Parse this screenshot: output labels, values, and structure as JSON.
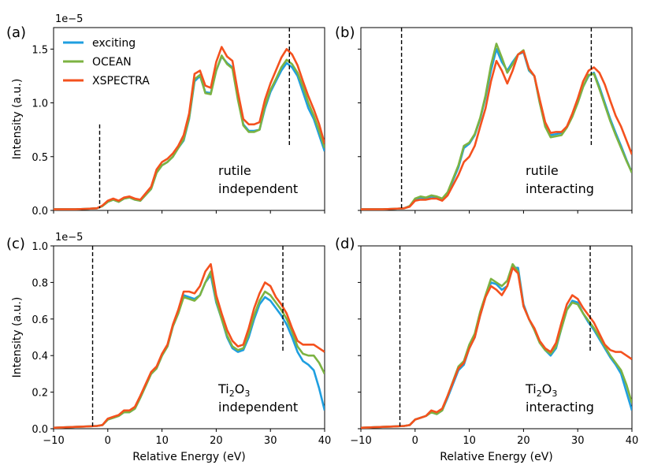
{
  "figure": {
    "xlabel": "Relative Energy (eV)",
    "ylabel": "Intensity (a.u.)",
    "scale_label": "1e−5",
    "legend": [
      {
        "name": "exciting",
        "color": "#1f9fe0"
      },
      {
        "name": "OCEAN",
        "color": "#7cb342"
      },
      {
        "name": "XSPECTRA",
        "color": "#f4511e"
      }
    ]
  },
  "chart_data": [
    {
      "panel": "(a)",
      "type": "line",
      "annotation": [
        "rutile",
        "independent"
      ],
      "xlim": [
        -10,
        40
      ],
      "ylim": [
        0,
        1.7
      ],
      "xticks": [
        -10,
        0,
        10,
        20,
        30,
        40
      ],
      "yticks": [
        0.0,
        0.5,
        1.0,
        1.5
      ],
      "ytick_labels": [
        "0.0",
        "0.5",
        "1.0",
        "1.5"
      ],
      "vlines": [
        {
          "x": -1.5,
          "y": [
            0.02,
            0.8
          ]
        },
        {
          "x": 33.5,
          "y": [
            0.6,
            1.71
          ]
        }
      ],
      "x": [
        -10,
        -6,
        -4,
        -2,
        -1,
        0,
        1,
        2,
        3,
        4,
        5,
        6,
        8,
        9,
        10,
        11,
        12,
        13,
        14,
        15,
        16,
        17,
        18,
        19,
        20,
        21,
        22,
        23,
        24,
        25,
        26,
        27,
        28,
        29,
        30,
        31,
        32,
        33,
        34,
        35,
        36,
        37,
        38,
        39,
        40
      ],
      "series": [
        {
          "name": "exciting",
          "values": [
            0.01,
            0.01,
            0.015,
            0.02,
            0.04,
            0.08,
            0.1,
            0.08,
            0.11,
            0.12,
            0.1,
            0.09,
            0.2,
            0.35,
            0.42,
            0.45,
            0.5,
            0.58,
            0.65,
            0.85,
            1.2,
            1.25,
            1.1,
            1.09,
            1.3,
            1.43,
            1.37,
            1.33,
            1.05,
            0.8,
            0.74,
            0.74,
            0.75,
            0.95,
            1.1,
            1.2,
            1.3,
            1.37,
            1.33,
            1.25,
            1.1,
            0.95,
            0.85,
            0.7,
            0.55
          ]
        },
        {
          "name": "OCEAN",
          "values": [
            0.01,
            0.01,
            0.015,
            0.02,
            0.04,
            0.08,
            0.1,
            0.08,
            0.11,
            0.12,
            0.1,
            0.09,
            0.2,
            0.35,
            0.42,
            0.45,
            0.5,
            0.58,
            0.66,
            0.86,
            1.22,
            1.26,
            1.09,
            1.08,
            1.3,
            1.44,
            1.36,
            1.32,
            1.03,
            0.79,
            0.73,
            0.73,
            0.75,
            0.97,
            1.12,
            1.22,
            1.33,
            1.4,
            1.36,
            1.28,
            1.15,
            1.0,
            0.88,
            0.74,
            0.58
          ]
        },
        {
          "name": "XSPECTRA",
          "values": [
            0.01,
            0.01,
            0.015,
            0.02,
            0.045,
            0.09,
            0.11,
            0.09,
            0.12,
            0.13,
            0.11,
            0.1,
            0.22,
            0.38,
            0.45,
            0.48,
            0.53,
            0.6,
            0.7,
            0.9,
            1.27,
            1.3,
            1.16,
            1.14,
            1.38,
            1.52,
            1.43,
            1.39,
            1.1,
            0.85,
            0.8,
            0.8,
            0.82,
            1.03,
            1.18,
            1.3,
            1.42,
            1.5,
            1.45,
            1.35,
            1.2,
            1.06,
            0.94,
            0.8,
            0.62
          ]
        }
      ]
    },
    {
      "panel": "(b)",
      "type": "line",
      "annotation": [
        "rutile",
        "interacting"
      ],
      "xlim": [
        -10,
        40
      ],
      "ylim": [
        0,
        1.7
      ],
      "xticks": [
        -10,
        0,
        10,
        20,
        30,
        40
      ],
      "yticks": [
        0.0,
        0.5,
        1.0,
        1.5
      ],
      "ytick_labels": [
        "",
        "",
        "",
        ""
      ],
      "vlines": [
        {
          "x": -2.5,
          "y": [
            0.0,
            1.71
          ]
        },
        {
          "x": 32.5,
          "y": [
            0.6,
            1.71
          ]
        }
      ],
      "x": [
        -10,
        -6,
        -4,
        -2,
        -1,
        0,
        1,
        2,
        3,
        4,
        5,
        6,
        8,
        9,
        10,
        11,
        12,
        13,
        14,
        15,
        16,
        17,
        18,
        19,
        20,
        21,
        22,
        23,
        24,
        25,
        26,
        27,
        28,
        29,
        30,
        31,
        32,
        33,
        34,
        35,
        36,
        37,
        38,
        39,
        40
      ],
      "series": [
        {
          "name": "exciting",
          "values": [
            0.01,
            0.01,
            0.015,
            0.02,
            0.04,
            0.1,
            0.12,
            0.11,
            0.13,
            0.12,
            0.1,
            0.16,
            0.4,
            0.58,
            0.62,
            0.7,
            0.85,
            1.05,
            1.3,
            1.5,
            1.38,
            1.3,
            1.38,
            1.45,
            1.47,
            1.3,
            1.25,
            1.0,
            0.8,
            0.7,
            0.71,
            0.72,
            0.78,
            0.88,
            1.0,
            1.15,
            1.25,
            1.28,
            1.15,
            1.0,
            0.85,
            0.72,
            0.6,
            0.47,
            0.35
          ]
        },
        {
          "name": "OCEAN",
          "values": [
            0.01,
            0.01,
            0.015,
            0.02,
            0.04,
            0.11,
            0.13,
            0.12,
            0.14,
            0.13,
            0.11,
            0.17,
            0.42,
            0.6,
            0.63,
            0.71,
            0.86,
            1.07,
            1.35,
            1.55,
            1.42,
            1.28,
            1.36,
            1.45,
            1.49,
            1.31,
            1.25,
            1.0,
            0.78,
            0.68,
            0.69,
            0.7,
            0.77,
            0.87,
            1.0,
            1.15,
            1.26,
            1.27,
            1.13,
            0.98,
            0.83,
            0.7,
            0.58,
            0.46,
            0.35
          ]
        },
        {
          "name": "XSPECTRA",
          "values": [
            0.01,
            0.01,
            0.015,
            0.02,
            0.035,
            0.09,
            0.1,
            0.1,
            0.11,
            0.11,
            0.09,
            0.14,
            0.33,
            0.45,
            0.5,
            0.6,
            0.78,
            0.95,
            1.2,
            1.39,
            1.3,
            1.18,
            1.3,
            1.45,
            1.48,
            1.32,
            1.25,
            1.03,
            0.82,
            0.72,
            0.73,
            0.73,
            0.78,
            0.9,
            1.04,
            1.2,
            1.3,
            1.33,
            1.28,
            1.17,
            1.02,
            0.88,
            0.78,
            0.65,
            0.52
          ]
        }
      ]
    },
    {
      "panel": "(c)",
      "type": "line",
      "annotation": [
        "Ti2O3",
        "independent"
      ],
      "xlim": [
        -10,
        40
      ],
      "ylim": [
        0,
        1.0
      ],
      "xticks": [
        -10,
        0,
        10,
        20,
        30,
        40
      ],
      "yticks": [
        0.0,
        0.2,
        0.4,
        0.6,
        0.8,
        1.0
      ],
      "ytick_labels": [
        "0.0",
        "0.2",
        "0.4",
        "0.6",
        "0.8",
        "1.0"
      ],
      "vlines": [
        {
          "x": -2.8,
          "y": [
            0.0,
            1.0
          ]
        },
        {
          "x": 32.3,
          "y": [
            0.42,
            1.0
          ]
        }
      ],
      "x": [
        -10,
        -6,
        -4,
        -2,
        -1,
        0,
        1,
        2,
        3,
        4,
        5,
        6,
        8,
        9,
        10,
        11,
        12,
        13,
        14,
        15,
        16,
        17,
        18,
        19,
        20,
        21,
        22,
        23,
        24,
        25,
        26,
        27,
        28,
        29,
        30,
        31,
        32,
        33,
        34,
        35,
        36,
        37,
        38,
        39,
        40
      ],
      "series": [
        {
          "name": "exciting",
          "values": [
            0.005,
            0.01,
            0.012,
            0.015,
            0.02,
            0.05,
            0.06,
            0.07,
            0.09,
            0.09,
            0.11,
            0.17,
            0.3,
            0.33,
            0.4,
            0.45,
            0.56,
            0.63,
            0.73,
            0.72,
            0.71,
            0.73,
            0.8,
            0.84,
            0.69,
            0.6,
            0.5,
            0.44,
            0.42,
            0.43,
            0.5,
            0.6,
            0.68,
            0.72,
            0.7,
            0.66,
            0.62,
            0.57,
            0.5,
            0.42,
            0.37,
            0.35,
            0.32,
            0.22,
            0.1
          ]
        },
        {
          "name": "OCEAN",
          "values": [
            0.005,
            0.01,
            0.012,
            0.015,
            0.02,
            0.05,
            0.06,
            0.07,
            0.09,
            0.09,
            0.11,
            0.17,
            0.3,
            0.33,
            0.4,
            0.45,
            0.56,
            0.63,
            0.72,
            0.71,
            0.7,
            0.73,
            0.8,
            0.86,
            0.7,
            0.6,
            0.51,
            0.45,
            0.43,
            0.44,
            0.52,
            0.62,
            0.7,
            0.75,
            0.73,
            0.69,
            0.65,
            0.6,
            0.53,
            0.45,
            0.41,
            0.4,
            0.4,
            0.36,
            0.3
          ]
        },
        {
          "name": "XSPECTRA",
          "values": [
            0.005,
            0.01,
            0.012,
            0.015,
            0.02,
            0.055,
            0.065,
            0.075,
            0.1,
            0.1,
            0.12,
            0.18,
            0.31,
            0.34,
            0.41,
            0.46,
            0.57,
            0.65,
            0.75,
            0.75,
            0.74,
            0.78,
            0.86,
            0.9,
            0.73,
            0.63,
            0.54,
            0.48,
            0.45,
            0.46,
            0.55,
            0.66,
            0.74,
            0.8,
            0.78,
            0.72,
            0.68,
            0.63,
            0.55,
            0.48,
            0.46,
            0.46,
            0.46,
            0.44,
            0.42
          ]
        }
      ]
    },
    {
      "panel": "(d)",
      "type": "line",
      "annotation": [
        "Ti2O3",
        "interacting"
      ],
      "xlim": [
        -10,
        40
      ],
      "ylim": [
        0,
        1.0
      ],
      "xticks": [
        -10,
        0,
        10,
        20,
        30,
        40
      ],
      "yticks": [
        0.0,
        0.2,
        0.4,
        0.6,
        0.8,
        1.0
      ],
      "ytick_labels": [
        "",
        "",
        "",
        "",
        "",
        ""
      ],
      "vlines": [
        {
          "x": -2.8,
          "y": [
            0.0,
            1.0
          ]
        },
        {
          "x": 32.3,
          "y": [
            0.42,
            1.0
          ]
        }
      ],
      "x": [
        -10,
        -6,
        -4,
        -2,
        -1,
        0,
        1,
        2,
        3,
        4,
        5,
        6,
        8,
        9,
        10,
        11,
        12,
        13,
        14,
        15,
        16,
        17,
        18,
        19,
        20,
        21,
        22,
        23,
        24,
        25,
        26,
        27,
        28,
        29,
        30,
        31,
        32,
        33,
        34,
        35,
        36,
        37,
        38,
        39,
        40
      ],
      "series": [
        {
          "name": "exciting",
          "values": [
            0.005,
            0.01,
            0.012,
            0.015,
            0.02,
            0.05,
            0.06,
            0.07,
            0.09,
            0.08,
            0.1,
            0.17,
            0.32,
            0.35,
            0.44,
            0.5,
            0.62,
            0.72,
            0.8,
            0.79,
            0.76,
            0.78,
            0.88,
            0.88,
            0.68,
            0.6,
            0.54,
            0.47,
            0.43,
            0.4,
            0.44,
            0.55,
            0.65,
            0.7,
            0.69,
            0.63,
            0.58,
            0.54,
            0.49,
            0.44,
            0.39,
            0.35,
            0.3,
            0.2,
            0.1
          ]
        },
        {
          "name": "OCEAN",
          "values": [
            0.005,
            0.01,
            0.012,
            0.015,
            0.02,
            0.05,
            0.06,
            0.07,
            0.09,
            0.08,
            0.1,
            0.18,
            0.34,
            0.37,
            0.46,
            0.52,
            0.64,
            0.73,
            0.82,
            0.8,
            0.78,
            0.81,
            0.9,
            0.86,
            0.67,
            0.6,
            0.54,
            0.47,
            0.43,
            0.41,
            0.45,
            0.55,
            0.65,
            0.69,
            0.68,
            0.63,
            0.59,
            0.55,
            0.5,
            0.45,
            0.4,
            0.36,
            0.32,
            0.24,
            0.14
          ]
        },
        {
          "name": "XSPECTRA",
          "values": [
            0.005,
            0.01,
            0.012,
            0.015,
            0.02,
            0.05,
            0.06,
            0.07,
            0.1,
            0.09,
            0.11,
            0.18,
            0.33,
            0.36,
            0.44,
            0.5,
            0.62,
            0.72,
            0.78,
            0.76,
            0.73,
            0.78,
            0.88,
            0.85,
            0.67,
            0.6,
            0.55,
            0.48,
            0.44,
            0.42,
            0.47,
            0.58,
            0.68,
            0.73,
            0.71,
            0.66,
            0.62,
            0.58,
            0.52,
            0.46,
            0.43,
            0.42,
            0.42,
            0.4,
            0.38
          ]
        }
      ]
    }
  ]
}
